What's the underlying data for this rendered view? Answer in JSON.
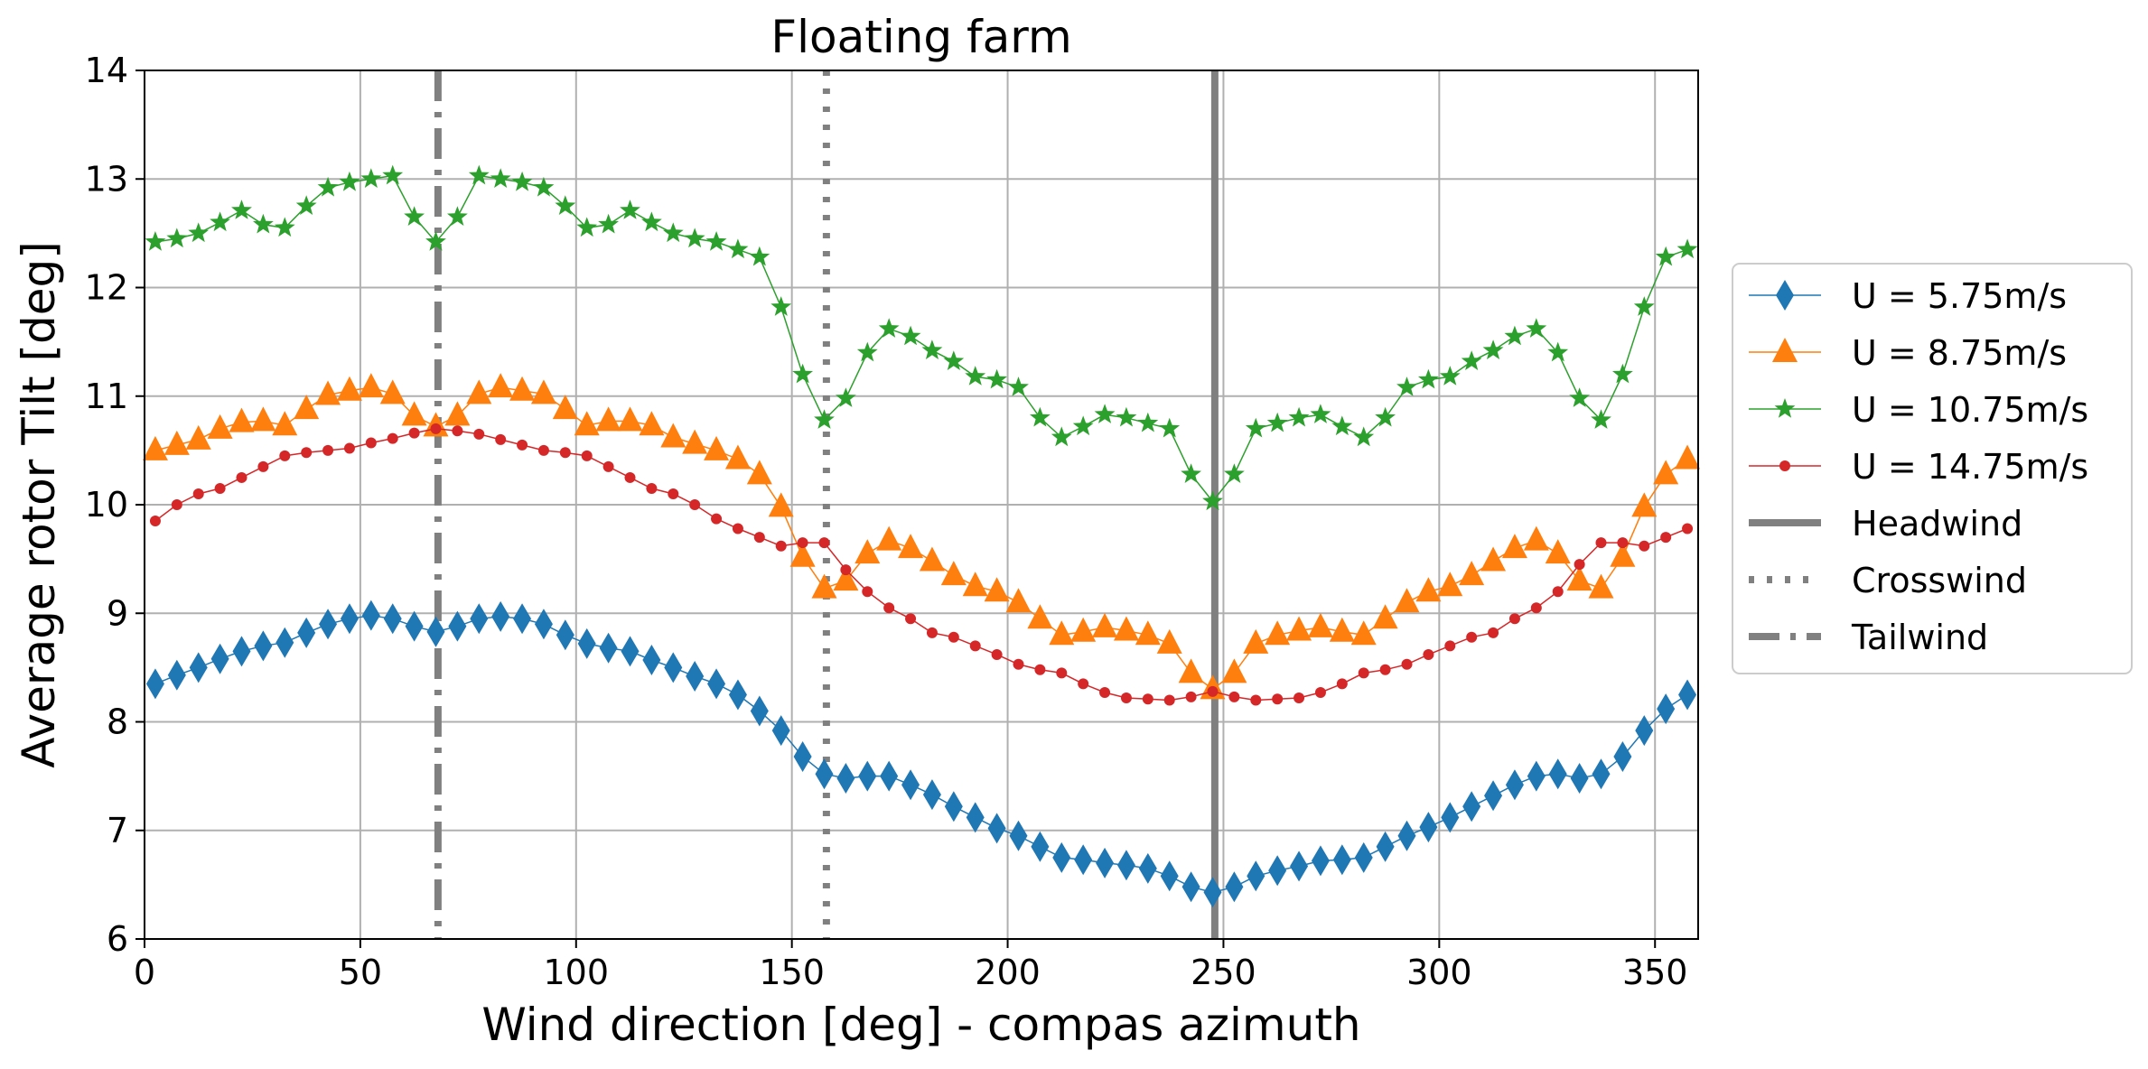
{
  "chart_data": {
    "type": "line",
    "title": "Floating farm",
    "xlabel": "Wind direction [deg] - compas azimuth",
    "ylabel": "Average rotor Tilt [deg]",
    "xlim": [
      0,
      360
    ],
    "ylim": [
      6,
      14
    ],
    "xticks": [
      0,
      50,
      100,
      150,
      200,
      250,
      300,
      350
    ],
    "yticks": [
      6,
      7,
      8,
      9,
      10,
      11,
      12,
      13,
      14
    ],
    "grid": true,
    "legend_position": "outside-right",
    "x": [
      2.5,
      7.5,
      12.5,
      17.5,
      22.5,
      27.5,
      32.5,
      37.5,
      42.5,
      47.5,
      52.5,
      57.5,
      62.5,
      67.5,
      72.5,
      77.5,
      82.5,
      87.5,
      92.5,
      97.5,
      102.5,
      107.5,
      112.5,
      117.5,
      122.5,
      127.5,
      132.5,
      137.5,
      142.5,
      147.5,
      152.5,
      157.5,
      162.5,
      167.5,
      172.5,
      177.5,
      182.5,
      187.5,
      192.5,
      197.5,
      202.5,
      207.5,
      212.5,
      217.5,
      222.5,
      227.5,
      232.5,
      237.5,
      242.5,
      247.5,
      252.5,
      257.5,
      262.5,
      267.5,
      272.5,
      277.5,
      282.5,
      287.5,
      292.5,
      297.5,
      302.5,
      307.5,
      312.5,
      317.5,
      322.5,
      327.5,
      332.5,
      337.5,
      342.5,
      347.5,
      352.5,
      357.5
    ],
    "series": [
      {
        "name": "U = 5.75m/s",
        "color": "#1f77b4",
        "marker": "thin_diamond",
        "values": [
          8.35,
          8.43,
          8.5,
          8.58,
          8.65,
          8.7,
          8.73,
          8.82,
          8.9,
          8.95,
          8.98,
          8.95,
          8.88,
          8.83,
          8.88,
          8.95,
          8.97,
          8.95,
          8.9,
          8.8,
          8.72,
          8.68,
          8.65,
          8.57,
          8.5,
          8.42,
          8.35,
          8.25,
          8.1,
          7.92,
          7.68,
          7.52,
          7.48,
          7.5,
          7.5,
          7.42,
          7.33,
          7.22,
          7.12,
          7.02,
          6.95,
          6.85,
          6.75,
          6.73,
          6.7,
          6.68,
          6.65,
          6.58,
          6.48,
          6.43,
          6.48,
          6.58,
          6.63,
          6.67,
          6.72,
          6.73,
          6.75,
          6.85,
          6.95,
          7.03,
          7.12,
          7.22,
          7.32,
          7.42,
          7.5,
          7.52,
          7.48,
          7.52,
          7.68,
          7.92,
          8.12,
          8.25
        ]
      },
      {
        "name": "U = 8.75m/s",
        "color": "#ff7f0e",
        "marker": "triangle",
        "values": [
          10.5,
          10.55,
          10.6,
          10.7,
          10.76,
          10.77,
          10.73,
          10.88,
          11.01,
          11.05,
          11.08,
          11.02,
          10.82,
          10.72,
          10.82,
          11.02,
          11.08,
          11.05,
          11.02,
          10.88,
          10.73,
          10.77,
          10.77,
          10.73,
          10.62,
          10.56,
          10.5,
          10.42,
          10.28,
          9.98,
          9.52,
          9.23,
          9.3,
          9.55,
          9.67,
          9.6,
          9.48,
          9.35,
          9.25,
          9.2,
          9.1,
          8.95,
          8.8,
          8.83,
          8.87,
          8.84,
          8.8,
          8.72,
          8.45,
          8.3,
          8.45,
          8.72,
          8.8,
          8.84,
          8.87,
          8.83,
          8.8,
          8.95,
          9.1,
          9.2,
          9.25,
          9.35,
          9.48,
          9.6,
          9.67,
          9.55,
          9.3,
          9.23,
          9.52,
          9.98,
          10.28,
          10.42
        ]
      },
      {
        "name": "U = 10.75m/s",
        "color": "#2ca02c",
        "marker": "star",
        "values": [
          12.42,
          12.45,
          12.5,
          12.6,
          12.71,
          12.58,
          12.55,
          12.75,
          12.92,
          12.97,
          13.0,
          13.03,
          12.65,
          12.42,
          12.65,
          13.03,
          13.0,
          12.97,
          12.92,
          12.75,
          12.55,
          12.58,
          12.71,
          12.6,
          12.5,
          12.45,
          12.42,
          12.35,
          12.28,
          11.82,
          11.2,
          10.78,
          10.98,
          11.4,
          11.62,
          11.55,
          11.42,
          11.32,
          11.18,
          11.15,
          11.08,
          10.8,
          10.62,
          10.72,
          10.83,
          10.8,
          10.75,
          10.7,
          10.28,
          10.03,
          10.28,
          10.7,
          10.75,
          10.8,
          10.83,
          10.72,
          10.62,
          10.8,
          11.08,
          11.15,
          11.18,
          11.32,
          11.42,
          11.55,
          11.62,
          11.4,
          10.98,
          10.78,
          11.2,
          11.82,
          12.28,
          12.35
        ]
      },
      {
        "name": "U = 14.75m/s",
        "color": "#d62728",
        "marker": "circle",
        "values": [
          9.85,
          10.0,
          10.1,
          10.15,
          10.25,
          10.35,
          10.45,
          10.48,
          10.5,
          10.52,
          10.57,
          10.61,
          10.66,
          10.7,
          10.68,
          10.65,
          10.6,
          10.55,
          10.5,
          10.48,
          10.45,
          10.35,
          10.25,
          10.15,
          10.1,
          10.0,
          9.87,
          9.78,
          9.7,
          9.62,
          9.65,
          9.65,
          9.4,
          9.2,
          9.05,
          8.95,
          8.82,
          8.78,
          8.7,
          8.62,
          8.53,
          8.48,
          8.45,
          8.35,
          8.27,
          8.22,
          8.21,
          8.2,
          8.23,
          8.28,
          8.23,
          8.2,
          8.21,
          8.22,
          8.27,
          8.35,
          8.45,
          8.48,
          8.53,
          8.62,
          8.7,
          8.78,
          8.82,
          8.95,
          9.05,
          9.2,
          9.45,
          9.65,
          9.65,
          9.62,
          9.7,
          9.78
        ]
      }
    ],
    "reference_lines": [
      {
        "name": "Headwind",
        "x": 248,
        "style": "solid",
        "color": "#808080"
      },
      {
        "name": "Crosswind",
        "x": 158,
        "style": "dotted",
        "color": "#808080"
      },
      {
        "name": "Tailwind",
        "x": 68,
        "style": "dashdot",
        "color": "#808080"
      }
    ]
  }
}
